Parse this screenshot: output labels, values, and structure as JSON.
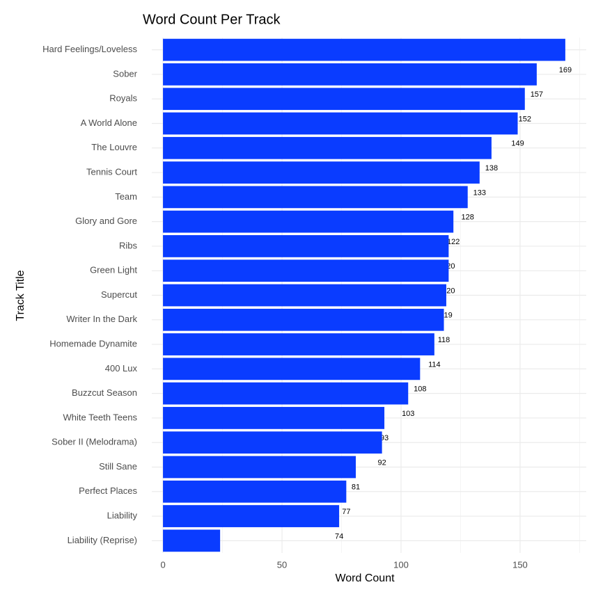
{
  "chart_data": {
    "type": "barh",
    "title": "Word Count Per Track",
    "x_label": "Word Count",
    "y_label": "Track Title",
    "categories": [
      "Hard Feelings/Loveless",
      "Sober",
      "Royals",
      "A World Alone",
      "The Louvre",
      "Tennis Court",
      "Team",
      "Glory and Gore",
      "Ribs",
      "Green Light",
      "Supercut",
      "Writer In the Dark",
      "Homemade Dynamite",
      "400 Lux",
      "Buzzcut Season",
      "White Teeth Teens",
      "Sober II (Melodrama)",
      "Still Sane",
      "Perfect Places",
      "Liability",
      "Liability (Reprise)"
    ],
    "values": [
      169,
      157,
      152,
      149,
      138,
      133,
      128,
      122,
      120,
      120,
      119,
      118,
      114,
      108,
      103,
      93,
      92,
      81,
      77,
      74,
      24
    ],
    "color": "#0a3cff",
    "xlim": [
      -4.7,
      177.8
    ],
    "xticks": [
      0,
      50,
      100,
      150
    ],
    "grid": true
  }
}
